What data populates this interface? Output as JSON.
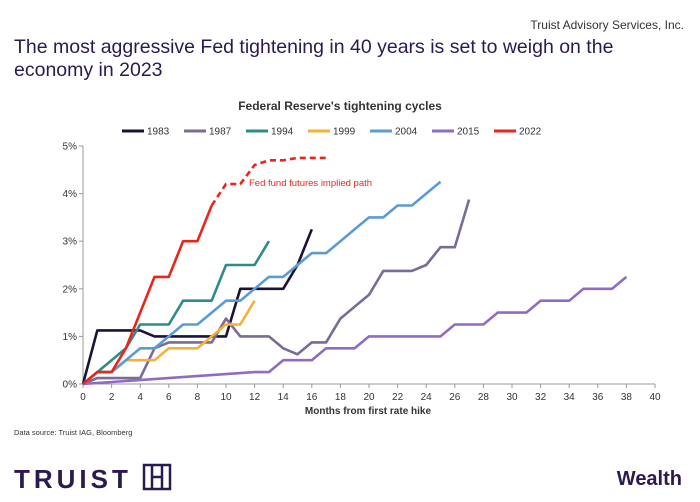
{
  "org": "Truist Advisory Services, Inc.",
  "headline": "The most aggressive Fed tightening in 40 years is set to weigh on the economy in 2023",
  "source": "Data source: Truist IAG, Bloomberg",
  "brand": {
    "wordmark": "TRUIST",
    "icon": "truist-monogram-icon",
    "division": "Wealth"
  },
  "colors": {
    "brand_purple": "#2b1a4f"
  },
  "chart_data": {
    "type": "line",
    "title": "Federal Reserve's tightening cycles",
    "xlabel": "Months from first rate hike",
    "ylabel": "",
    "xlim": [
      0,
      40
    ],
    "ylim": [
      0,
      5
    ],
    "x_ticks": [
      "0",
      "2",
      "4",
      "6",
      "8",
      "10",
      "12",
      "14",
      "16",
      "18",
      "20",
      "22",
      "24",
      "26",
      "28",
      "30",
      "32",
      "34",
      "36",
      "38",
      "40"
    ],
    "y_ticks": [
      "0%",
      "1%",
      "2%",
      "3%",
      "4%",
      "5%"
    ],
    "grid": false,
    "legend_position": "top",
    "annotation": "Fed fund futures implied path",
    "series": [
      {
        "name": "1983",
        "color": "#1c1238",
        "points": [
          [
            0,
            0
          ],
          [
            1,
            1.125
          ],
          [
            2,
            1.125
          ],
          [
            3,
            1.125
          ],
          [
            4,
            1.125
          ],
          [
            5,
            1.0
          ],
          [
            6,
            1.0
          ],
          [
            7,
            1.0
          ],
          [
            8,
            1.0
          ],
          [
            9,
            1.0
          ],
          [
            10,
            1.0
          ],
          [
            11,
            2.0
          ],
          [
            12,
            2.0
          ],
          [
            13,
            2.0
          ],
          [
            14,
            2.0
          ],
          [
            15,
            2.5
          ],
          [
            16,
            3.25
          ]
        ]
      },
      {
        "name": "1987",
        "color": "#7a6b97",
        "points": [
          [
            0,
            0
          ],
          [
            1,
            0.125
          ],
          [
            2,
            0.125
          ],
          [
            3,
            0.125
          ],
          [
            4,
            0.125
          ],
          [
            5,
            0.75
          ],
          [
            6,
            0.875
          ],
          [
            7,
            0.875
          ],
          [
            8,
            0.875
          ],
          [
            9,
            0.875
          ],
          [
            10,
            1.375
          ],
          [
            11,
            1.0
          ],
          [
            12,
            1.0
          ],
          [
            13,
            1.0
          ],
          [
            14,
            0.75
          ],
          [
            15,
            0.625
          ],
          [
            16,
            0.875
          ],
          [
            17,
            0.875
          ],
          [
            18,
            1.375
          ],
          [
            19,
            1.625
          ],
          [
            20,
            1.875
          ],
          [
            21,
            2.375
          ],
          [
            22,
            2.375
          ],
          [
            23,
            2.375
          ],
          [
            24,
            2.5
          ],
          [
            25,
            2.875
          ],
          [
            26,
            2.875
          ],
          [
            27,
            3.875
          ]
        ]
      },
      {
        "name": "1994",
        "color": "#2e8b8b",
        "points": [
          [
            0,
            0
          ],
          [
            1,
            0.25
          ],
          [
            2,
            0.5
          ],
          [
            3,
            0.75
          ],
          [
            4,
            1.25
          ],
          [
            5,
            1.25
          ],
          [
            6,
            1.25
          ],
          [
            7,
            1.75
          ],
          [
            8,
            1.75
          ],
          [
            9,
            1.75
          ],
          [
            10,
            2.5
          ],
          [
            11,
            2.5
          ],
          [
            12,
            2.5
          ],
          [
            13,
            3.0
          ]
        ]
      },
      {
        "name": "1999",
        "color": "#f5b135",
        "points": [
          [
            0,
            0
          ],
          [
            1,
            0.25
          ],
          [
            2,
            0.25
          ],
          [
            3,
            0.5
          ],
          [
            4,
            0.5
          ],
          [
            5,
            0.5
          ],
          [
            6,
            0.75
          ],
          [
            7,
            0.75
          ],
          [
            8,
            0.75
          ],
          [
            9,
            1.0
          ],
          [
            10,
            1.25
          ],
          [
            11,
            1.25
          ],
          [
            12,
            1.75
          ]
        ]
      },
      {
        "name": "2004",
        "color": "#5b9bd5",
        "points": [
          [
            0,
            0
          ],
          [
            1,
            0.25
          ],
          [
            2,
            0.25
          ],
          [
            3,
            0.5
          ],
          [
            4,
            0.75
          ],
          [
            5,
            0.75
          ],
          [
            6,
            1.0
          ],
          [
            7,
            1.25
          ],
          [
            8,
            1.25
          ],
          [
            9,
            1.5
          ],
          [
            10,
            1.75
          ],
          [
            11,
            1.75
          ],
          [
            12,
            2.0
          ],
          [
            13,
            2.25
          ],
          [
            14,
            2.25
          ],
          [
            15,
            2.5
          ],
          [
            16,
            2.75
          ],
          [
            17,
            2.75
          ],
          [
            18,
            3.0
          ],
          [
            19,
            3.25
          ],
          [
            20,
            3.5
          ],
          [
            21,
            3.5
          ],
          [
            22,
            3.75
          ],
          [
            23,
            3.75
          ],
          [
            24,
            4.0
          ],
          [
            25,
            4.25
          ]
        ]
      },
      {
        "name": "2015",
        "color": "#8e6cc6",
        "points": [
          [
            0,
            0
          ],
          [
            12,
            0.25
          ],
          [
            13,
            0.25
          ],
          [
            14,
            0.5
          ],
          [
            15,
            0.5
          ],
          [
            16,
            0.5
          ],
          [
            17,
            0.75
          ],
          [
            18,
            0.75
          ],
          [
            19,
            0.75
          ],
          [
            20,
            1.0
          ],
          [
            21,
            1.0
          ],
          [
            22,
            1.0
          ],
          [
            23,
            1.0
          ],
          [
            24,
            1.0
          ],
          [
            25,
            1.0
          ],
          [
            26,
            1.25
          ],
          [
            27,
            1.25
          ],
          [
            28,
            1.25
          ],
          [
            29,
            1.5
          ],
          [
            30,
            1.5
          ],
          [
            31,
            1.5
          ],
          [
            32,
            1.75
          ],
          [
            33,
            1.75
          ],
          [
            34,
            1.75
          ],
          [
            35,
            2.0
          ],
          [
            36,
            2.0
          ],
          [
            37,
            2.0
          ],
          [
            38,
            2.25
          ]
        ]
      },
      {
        "name": "2022",
        "color": "#e8261c",
        "points": [
          [
            0,
            0
          ],
          [
            1,
            0.25
          ],
          [
            2,
            0.25
          ],
          [
            3,
            0.75
          ],
          [
            4,
            1.5
          ],
          [
            5,
            2.25
          ],
          [
            6,
            2.25
          ],
          [
            7,
            3.0
          ],
          [
            8,
            3.0
          ],
          [
            9,
            3.75
          ]
        ],
        "projection": [
          [
            9,
            3.75
          ],
          [
            10,
            4.2
          ],
          [
            11,
            4.2
          ],
          [
            12,
            4.6
          ],
          [
            13,
            4.7
          ],
          [
            14,
            4.7
          ],
          [
            15,
            4.75
          ],
          [
            16,
            4.75
          ],
          [
            17,
            4.75
          ]
        ]
      }
    ]
  }
}
